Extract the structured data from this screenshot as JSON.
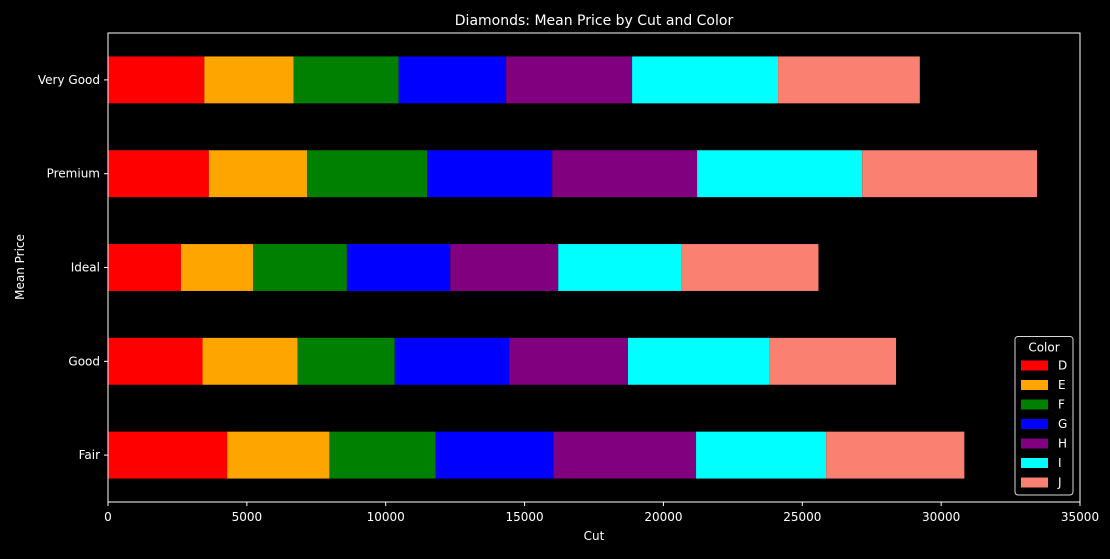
{
  "chart_data": {
    "type": "bar",
    "orientation": "horizontal",
    "stacked": true,
    "title": "Diamonds: Mean Price by Cut and Color",
    "xlabel": "Cut",
    "ylabel": "Mean Price",
    "xlim": [
      0,
      35000
    ],
    "xticks": [
      0,
      5000,
      10000,
      15000,
      20000,
      25000,
      30000,
      35000
    ],
    "grid": false,
    "categories": [
      "Fair",
      "Good",
      "Ideal",
      "Premium",
      "Very Good"
    ],
    "legend": {
      "title": "Color",
      "placement": "lower-right"
    },
    "series": [
      {
        "name": "D",
        "color": "#ff0000",
        "values": [
          4291,
          3405,
          2629,
          3631,
          3470
        ]
      },
      {
        "name": "E",
        "color": "#ffa500",
        "values": [
          3682,
          3424,
          2598,
          3539,
          3215
        ]
      },
      {
        "name": "F",
        "color": "#008000",
        "values": [
          3827,
          3496,
          3375,
          4325,
          3779
        ]
      },
      {
        "name": "G",
        "color": "#0000ff",
        "values": [
          4239,
          4123,
          3721,
          4501,
          3873
        ]
      },
      {
        "name": "H",
        "color": "#800080",
        "values": [
          5136,
          4276,
          3889,
          5217,
          4535
        ]
      },
      {
        "name": "I",
        "color": "#00ffff",
        "values": [
          4685,
          5079,
          4452,
          5946,
          5256
        ]
      },
      {
        "name": "J",
        "color": "#fa8072",
        "values": [
          4976,
          4574,
          4918,
          6295,
          5104
        ]
      }
    ]
  },
  "colors": {
    "background": "#000000",
    "foreground": "#ffffff",
    "legend_edge": "#d9d9d9"
  }
}
